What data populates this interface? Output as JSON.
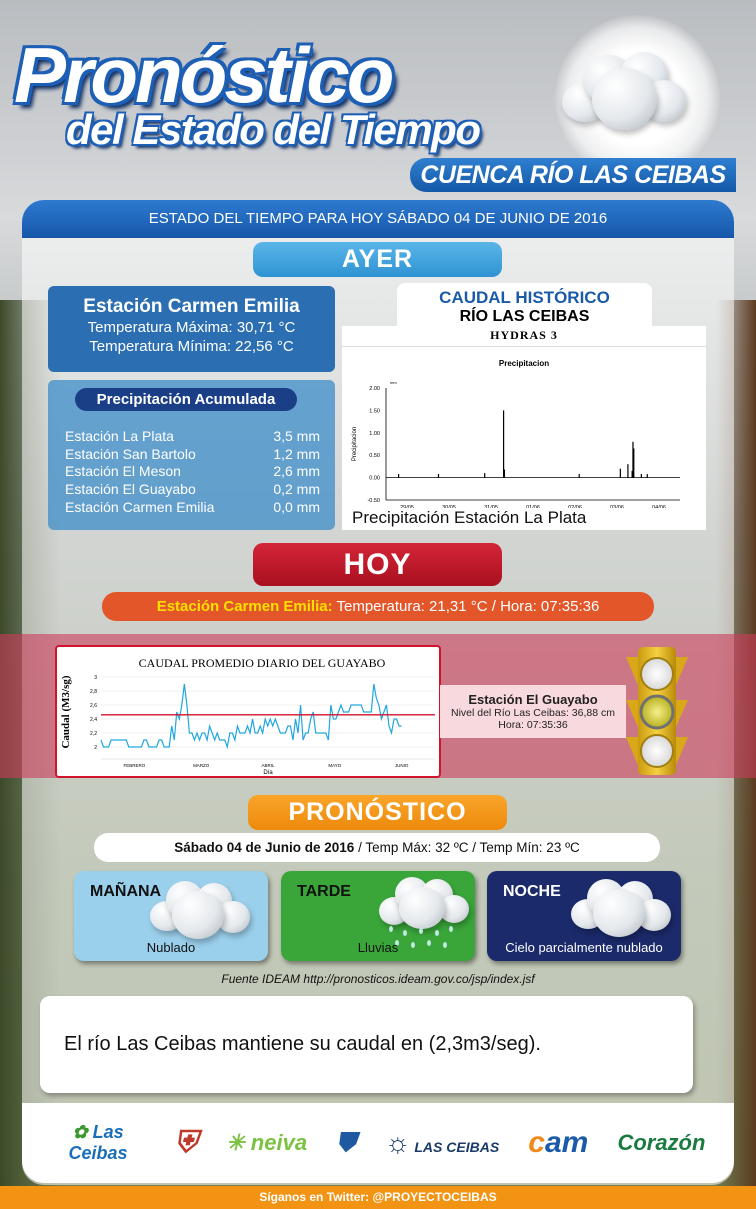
{
  "header": {
    "title_line1": "Pronóstico",
    "title_line2": "del Estado del Tiempo",
    "basin": "CUENCA RÍO LAS CEIBAS",
    "date_bar": "ESTADO DEL TIEMPO  PARA HOY  SÁBADO 04 DE JUNIO  DE 2016"
  },
  "ayer": {
    "tab": "AYER",
    "station": {
      "name": "Estación Carmen Emilia",
      "max": "Temperatura  Máxima: 30,71 °C",
      "min": "Temperatura  Mínima: 22,56 °C"
    },
    "precip": {
      "title": "Precipitación  Acumulada",
      "rows": [
        {
          "station": "Estación La Plata",
          "value": "3,5 mm"
        },
        {
          "station": "Estación San Bartolo",
          "value": "1,2 mm"
        },
        {
          "station": "Estación El Meson",
          "value": "2,6 mm"
        },
        {
          "station": "Estación El Guayabo",
          "value": "0,2 mm"
        },
        {
          "station": "Estación Carmen Emilia",
          "value": "0,0 mm"
        }
      ]
    },
    "historic": {
      "line1": "CAUDAL HISTÓRICO",
      "line2": "RÍO LAS CEIBAS",
      "software": "HYDRAS 3",
      "caption": "Precipitación Estación La Plata"
    }
  },
  "hoy": {
    "tab": "HOY",
    "station_label": "Estación Carmen Emilia:",
    "reading": " Temperatura:  21,31 °C   / Hora: 07:35:36",
    "guayabo": {
      "name": "Estación  El Guayabo",
      "level": "Nivel del Río  Las Ceibas: 36,88 cm",
      "time": "Hora: 07:35:36"
    },
    "traffic_light_active": "yellow"
  },
  "pronostico": {
    "tab": "PRONÓSTICO",
    "date": "Sábado 04 de Junio de 2016",
    "temps": " / Temp Máx:  32 ºC    /    Temp Mín:  23 ºC",
    "periods": [
      {
        "label": "MAÑANA",
        "desc": "Nublado",
        "icon": "cloud-icon",
        "color": "#9bd0ec"
      },
      {
        "label": "TARDE",
        "desc": "Lluvias",
        "icon": "rain-cloud-icon",
        "color": "#3aa63a"
      },
      {
        "label": "NOCHE",
        "desc": "Cielo  parcialmente  nublado",
        "icon": "cloud-icon",
        "color": "#1b2a6b"
      }
    ],
    "source": "Fuente IDEAM  http://pronosticos.ideam.gov.co/jsp/index.jsf"
  },
  "note": "El río Las Ceibas mantiene su caudal en (2,3m3/seg).",
  "logos": [
    "Cuenca Río Las Ceibas ¡Nuestro Río!",
    "Gobernación del Huila",
    "Neiva La razón de todos",
    "Municipio de Neiva",
    "Las Ceibas",
    "CAM ¡Cuida tu naturaleza!",
    "Opita de Corazón"
  ],
  "footer": "Síganos en Twitter: @PROYECTOCEIBAS",
  "chart_data": [
    {
      "type": "bar",
      "title": "Precipitacion",
      "ylabel": "Precipitacion",
      "yunit": "mm",
      "xlabel": "[1d]",
      "x_start": "29/05/2016",
      "x_end": "05/06/2016",
      "x_ticks": [
        "29/05",
        "30/05",
        "31/05",
        "01/06",
        "02/06",
        "03/06",
        "04/06"
      ],
      "y_ticks": [
        "-0.50",
        "0.00",
        "0.50",
        "1.00",
        "1.50",
        "2.00"
      ],
      "ylim": [
        -0.5,
        2.0
      ],
      "x_days": [
        0.3,
        1.25,
        2.35,
        2.8,
        2.82,
        4.6,
        5.58,
        5.76,
        5.86,
        5.88,
        5.9,
        6.08,
        6.22
      ],
      "values": [
        0.08,
        0.08,
        0.1,
        1.5,
        0.18,
        0.08,
        0.2,
        0.3,
        0.15,
        0.8,
        0.65,
        0.08,
        0.08
      ]
    },
    {
      "type": "line",
      "title": "CAUDAL PROMEDIO DIARIO DEL GUAYABO",
      "ylabel": "Caudal (M3/sg)",
      "xlabel": "Día",
      "months": [
        "FEBRERO",
        "MARZO",
        "ABRIL",
        "MAYO",
        "JUNIO"
      ],
      "y_ticks": [
        "2",
        "2,2",
        "2,4",
        "2,6",
        "2,8",
        "3"
      ],
      "ylim": [
        2,
        3
      ],
      "reference": 2.46,
      "values": [
        2.1,
        2,
        2,
        2,
        2.1,
        2.1,
        2.1,
        2.1,
        2.1,
        2.1,
        2.1,
        2,
        2,
        2,
        2,
        2,
        2,
        2.1,
        2.1,
        2,
        2,
        2,
        2,
        2.1,
        2.1,
        2,
        2,
        2,
        2.3,
        2.1,
        2.5,
        2.4,
        2.6,
        2.9,
        2.6,
        2.2,
        2.2,
        2.1,
        2.2,
        2.1,
        2.2,
        2.2,
        2.1,
        2.3,
        2.2,
        2.1,
        2.2,
        2.1,
        2.1,
        2.1,
        2,
        2.2,
        2.2,
        2.1,
        2.3,
        2.2,
        2.2,
        2.2,
        2.3,
        2.2,
        2.4,
        2.2,
        2.2,
        2.3,
        2.2,
        2.4,
        2.3,
        2.4,
        2.3,
        2.4,
        2.3,
        2.2,
        2.2,
        2.2,
        2.3,
        2.3,
        2.1,
        2.4,
        2.2,
        2.6,
        2.1,
        2.2,
        2.2,
        2.4,
        2.5,
        2.2,
        2.2,
        2.2,
        2.2,
        2.2,
        2.1,
        2.6,
        2.4,
        2.4,
        2.5,
        2.6,
        2.5,
        2.5,
        2.5,
        2.6,
        2.6,
        2.6,
        2.6,
        2.6,
        2.5,
        2.5,
        2.5,
        2.5,
        2.9,
        2.7,
        2.6,
        2.4,
        2.5,
        2.6,
        2.3,
        2.2,
        2.4,
        2.4,
        2.3,
        2.3
      ]
    }
  ]
}
